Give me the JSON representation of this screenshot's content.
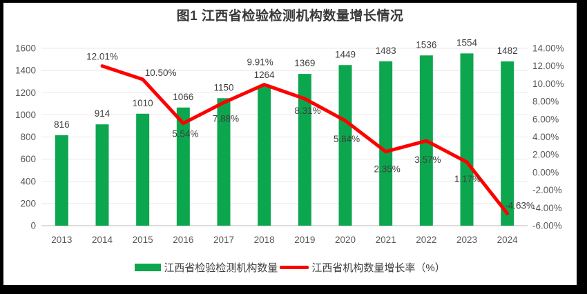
{
  "chart_data": {
    "type": "combo",
    "title": "图1 江西省检验检测机构数量增长情况",
    "categories": [
      "2013",
      "2014",
      "2015",
      "2016",
      "2017",
      "2018",
      "2019",
      "2020",
      "2021",
      "2022",
      "2023",
      "2024"
    ],
    "series": [
      {
        "name": "江西省检验检测机构数量",
        "type": "bar",
        "axis": "left",
        "color": "#0ca64f",
        "values": [
          816,
          914,
          1010,
          1066,
          1150,
          1264,
          1369,
          1449,
          1483,
          1536,
          1554,
          1482
        ],
        "labels": [
          "816",
          "914",
          "1010",
          "1066",
          "1150",
          "1264",
          "1369",
          "1449",
          "1483",
          "1536",
          "1554",
          "1482"
        ]
      },
      {
        "name": "江西省机构数量增长率（%）",
        "type": "line",
        "axis": "right",
        "color": "#fe0000",
        "values": [
          null,
          12.01,
          10.5,
          5.54,
          7.88,
          9.91,
          8.31,
          5.84,
          2.35,
          3.57,
          1.17,
          -4.63
        ],
        "labels": [
          "",
          "12.01%",
          "10.50%",
          "5.54%",
          "7.88%",
          "9.91%",
          "8.31%",
          "5.84%",
          "2.35%",
          "3.57%",
          "1.17%",
          "-4.63%"
        ]
      }
    ],
    "left_axis": {
      "min": 0,
      "max": 1600,
      "step": 200,
      "tick_values": [
        0,
        200,
        400,
        600,
        800,
        1000,
        1200,
        1400,
        1600
      ],
      "tick_labels": [
        "0",
        "200",
        "400",
        "600",
        "800",
        "1000",
        "1200",
        "1400",
        "1600"
      ]
    },
    "right_axis": {
      "min": -6,
      "max": 14,
      "step": 2,
      "tick_values": [
        -6,
        -4,
        -2,
        0,
        2,
        4,
        6,
        8,
        10,
        12,
        14
      ],
      "tick_labels": [
        "-6.00%",
        "-4.00%",
        "-2.00%",
        "0.00%",
        "2.00%",
        "4.00%",
        "6.00%",
        "8.00%",
        "10.00%",
        "12.00%",
        "14.00%"
      ]
    },
    "legend_position": "bottom",
    "grid": "horizontal",
    "colors": {
      "frame": "#000000",
      "background": "#ffffff",
      "gridline": "#e8e8e8",
      "axis_line": "#d2d2d2",
      "tick_text": "#595959",
      "data_label_text": "#404040"
    }
  }
}
